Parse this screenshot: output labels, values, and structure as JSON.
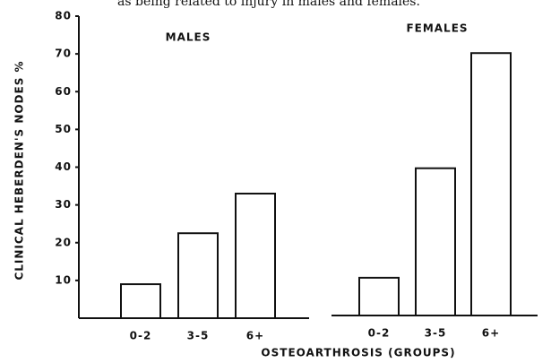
{
  "caption": "as being related to injury in males and females.",
  "chart_data": [
    {
      "type": "bar",
      "title": "MALES",
      "ylabel": "CLINICAL HEBERDEN'S NODES %",
      "xlabel": "OSTEOARTHROSIS (GROUPS)",
      "categories": [
        "0-2",
        "3-5",
        "6+"
      ],
      "values": [
        9,
        22.5,
        33
      ],
      "color": "#ffffff",
      "ylim": [
        0,
        80
      ],
      "yticks": [
        10,
        20,
        30,
        40,
        50,
        60,
        70,
        80
      ]
    },
    {
      "type": "bar",
      "title": "FEMALES",
      "categories": [
        "0-2",
        "3-5",
        "6+"
      ],
      "values": [
        10,
        39,
        69.5
      ],
      "color": "#ffffff",
      "ylim": [
        0,
        80
      ]
    }
  ]
}
